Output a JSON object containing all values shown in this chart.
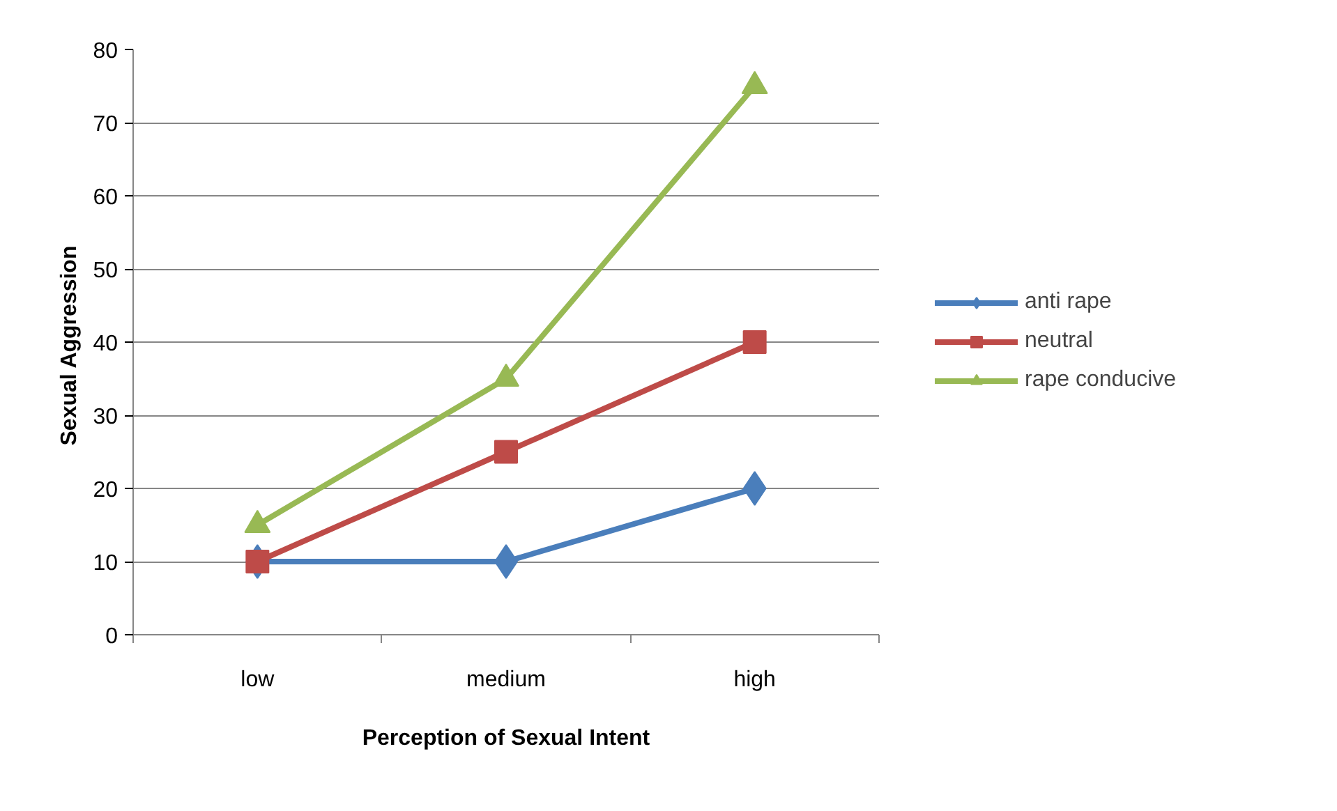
{
  "chart_data": {
    "type": "line",
    "xlabel": "Perception of Sexual Intent",
    "ylabel": "Sexual  Aggression",
    "categories": [
      "low",
      "medium",
      "high"
    ],
    "series": [
      {
        "name": "anti rape",
        "color": "#4a7ebb",
        "marker": "diamond",
        "values": [
          10,
          10,
          20
        ]
      },
      {
        "name": "neutral",
        "color": "#be4b48",
        "marker": "square",
        "values": [
          10,
          25,
          40
        ]
      },
      {
        "name": "rape conducive",
        "color": "#98b954",
        "marker": "triangle",
        "values": [
          15,
          35,
          75
        ]
      }
    ],
    "ylim": [
      0,
      80
    ],
    "yticks": [
      0,
      10,
      20,
      30,
      40,
      50,
      60,
      70,
      80
    ],
    "grid": "y",
    "legend": "right"
  }
}
